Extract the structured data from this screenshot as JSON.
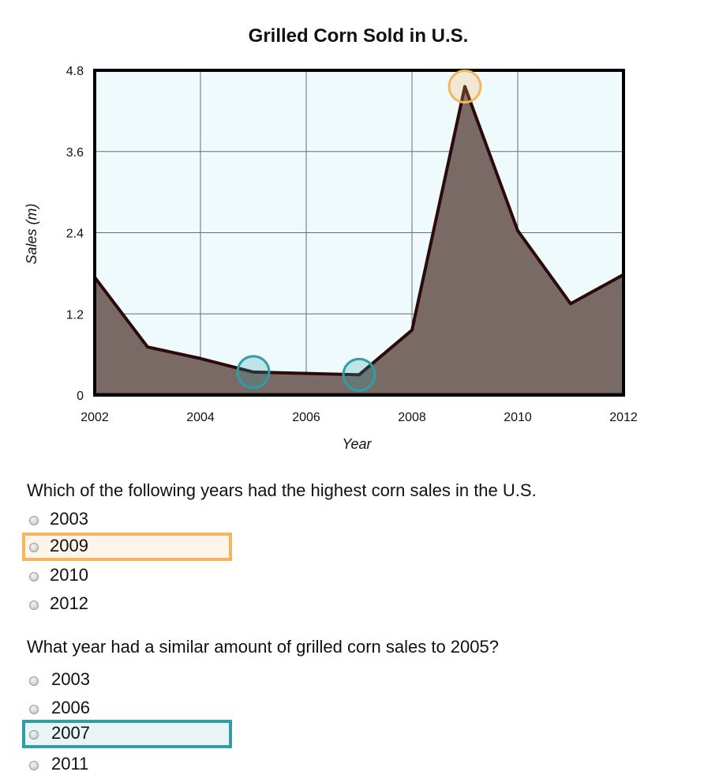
{
  "chart_data": {
    "type": "area",
    "title": "Grilled Corn Sold in U.S.",
    "xlabel": "Year",
    "ylabel": "Sales (m)",
    "x": [
      2002,
      2003,
      2004,
      2005,
      2006,
      2007,
      2008,
      2009,
      2010,
      2011,
      2012
    ],
    "y": [
      1.74,
      0.71,
      0.54,
      0.34,
      0.32,
      0.3,
      0.96,
      4.56,
      2.43,
      1.35,
      1.78
    ],
    "xticks": [
      "2002",
      "2004",
      "2006",
      "2008",
      "2010",
      "2012"
    ],
    "yticks": [
      "0",
      "1.2",
      "2.4",
      "3.6",
      "4.8"
    ],
    "xlim": [
      2002,
      2012
    ],
    "ylim": [
      0,
      4.8
    ],
    "grid": true,
    "highlights": [
      {
        "x": 2009,
        "color": "#f5b55c"
      },
      {
        "x": 2005,
        "color": "#2f9ea6"
      },
      {
        "x": 2007,
        "color": "#2f9ea6"
      }
    ],
    "colors": {
      "plot_background": "#effafc",
      "area_fill": "#7a6a66",
      "line": "#2a0a0a",
      "grid": "#6b6b6b"
    }
  },
  "questions": [
    {
      "text": "Which of the following years had the highest corn sales in the U.S.",
      "options": [
        "2003",
        "2009",
        "2010",
        "2012"
      ],
      "highlighted": "2009",
      "highlight_color": "#f5b55c"
    },
    {
      "text": "What year had a similar amount of grilled corn sales to 2005?",
      "options": [
        "2003",
        "2006",
        "2007",
        "2011"
      ],
      "highlighted": "2007",
      "highlight_color": "#2f9ea6"
    }
  ]
}
